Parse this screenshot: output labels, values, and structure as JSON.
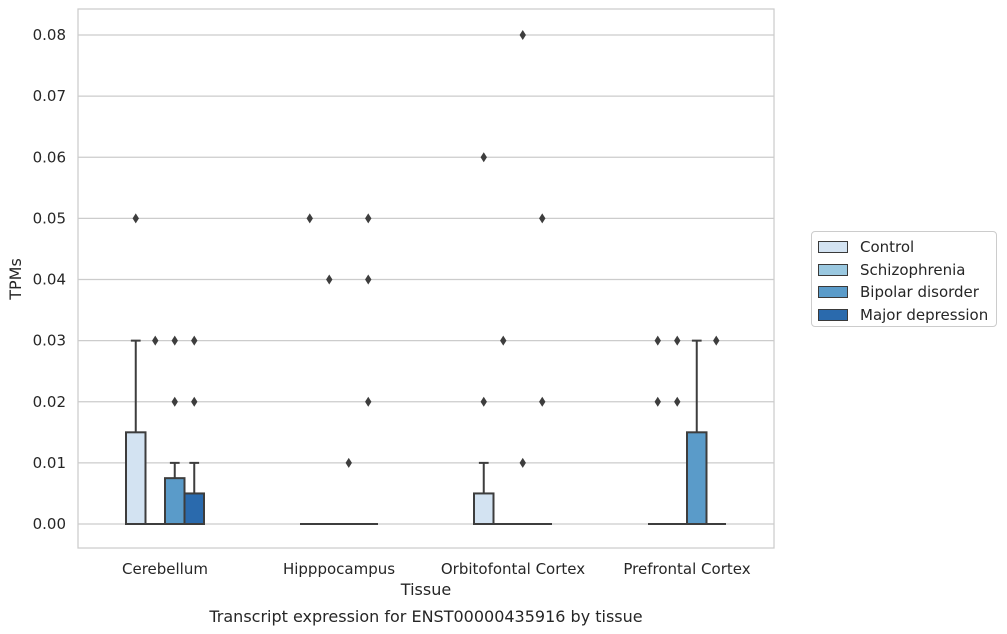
{
  "chart_data": {
    "type": "box",
    "title": "Transcript expression for ENST00000435916 by tissue",
    "xlabel": "Tissue",
    "ylabel": "TPMs",
    "ylim": [
      -0.004,
      0.084
    ],
    "yticks": [
      "0.00",
      "0.01",
      "0.02",
      "0.03",
      "0.04",
      "0.05",
      "0.06",
      "0.07",
      "0.08"
    ],
    "grid": true,
    "legend_position": "right",
    "categories": [
      "Cerebellum",
      "Hipppocampus",
      "Orbitofontal Cortex",
      "Prefrontal Cortex"
    ],
    "series": [
      {
        "name": "Control",
        "color": "#d3e3f2",
        "boxes": [
          {
            "q1": 0,
            "median": 0,
            "q3": 0.015,
            "whisker_low": 0,
            "whisker_high": 0.03,
            "outliers": [
              0.05
            ]
          },
          {
            "q1": 0,
            "median": 0,
            "q3": 0,
            "whisker_low": 0,
            "whisker_high": 0,
            "outliers": [
              0.05
            ]
          },
          {
            "q1": 0,
            "median": 0,
            "q3": 0.005,
            "whisker_low": 0,
            "whisker_high": 0.01,
            "outliers": [
              0.02,
              0.06
            ]
          },
          {
            "q1": 0,
            "median": 0,
            "q3": 0,
            "whisker_low": 0,
            "whisker_high": 0,
            "outliers": [
              0.02,
              0.03
            ]
          }
        ]
      },
      {
        "name": "Schizophrenia",
        "color": "#9ac8e0",
        "boxes": [
          {
            "q1": 0,
            "median": 0,
            "q3": 0,
            "whisker_low": 0,
            "whisker_high": 0,
            "outliers": [
              0.03
            ]
          },
          {
            "q1": 0,
            "median": 0,
            "q3": 0,
            "whisker_low": 0,
            "whisker_high": 0,
            "outliers": [
              0.04
            ]
          },
          {
            "q1": 0,
            "median": 0,
            "q3": 0,
            "whisker_low": 0,
            "whisker_high": 0,
            "outliers": [
              0.03
            ]
          },
          {
            "q1": 0,
            "median": 0,
            "q3": 0,
            "whisker_low": 0,
            "whisker_high": 0,
            "outliers": [
              0.02,
              0.03
            ]
          }
        ]
      },
      {
        "name": "Bipolar disorder",
        "color": "#5a9bc9",
        "boxes": [
          {
            "q1": 0,
            "median": 0,
            "q3": 0.0075,
            "whisker_low": 0,
            "whisker_high": 0.01,
            "outliers": [
              0.02,
              0.03
            ]
          },
          {
            "q1": 0,
            "median": 0,
            "q3": 0,
            "whisker_low": 0,
            "whisker_high": 0,
            "outliers": [
              0.01
            ]
          },
          {
            "q1": 0,
            "median": 0,
            "q3": 0,
            "whisker_low": 0,
            "whisker_high": 0,
            "outliers": [
              0.01,
              0.08
            ]
          },
          {
            "q1": 0,
            "median": 0,
            "q3": 0.015,
            "whisker_low": 0,
            "whisker_high": 0.03,
            "outliers": []
          }
        ]
      },
      {
        "name": "Major depression",
        "color": "#2a6aad",
        "boxes": [
          {
            "q1": 0,
            "median": 0,
            "q3": 0.005,
            "whisker_low": 0,
            "whisker_high": 0.01,
            "outliers": [
              0.02,
              0.03
            ]
          },
          {
            "q1": 0,
            "median": 0,
            "q3": 0,
            "whisker_low": 0,
            "whisker_high": 0,
            "outliers": [
              0.02,
              0.04,
              0.05
            ]
          },
          {
            "q1": 0,
            "median": 0,
            "q3": 0,
            "whisker_low": 0,
            "whisker_high": 0,
            "outliers": [
              0.02,
              0.05
            ]
          },
          {
            "q1": 0,
            "median": 0,
            "q3": 0,
            "whisker_low": 0,
            "whisker_high": 0,
            "outliers": [
              0.03
            ]
          }
        ]
      }
    ]
  }
}
